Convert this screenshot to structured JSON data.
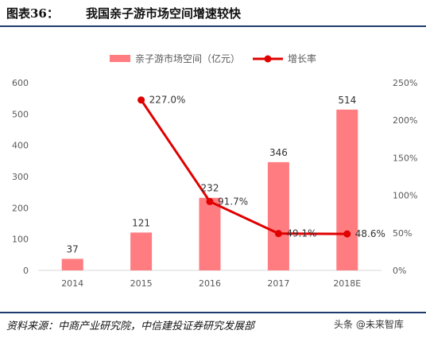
{
  "header": {
    "label": "图表36：",
    "title": "我国亲子游市场空间增速较快"
  },
  "footer": {
    "source": "资料来源：中商产业研究院，中信建投证券研究发展部",
    "watermark": "头条 @未来智库"
  },
  "colors": {
    "bar": "#ff7c80",
    "line": "#e00000",
    "rule": "#1f3a6e",
    "tick_text": "#595959"
  },
  "chart_data": {
    "type": "bar+line",
    "categories": [
      "2014",
      "2015",
      "2016",
      "2017",
      "2018E"
    ],
    "series": [
      {
        "name": "亲子游市场空间（亿元）",
        "kind": "bar",
        "axis": "left",
        "values": [
          37,
          121,
          232,
          346,
          514
        ],
        "labels": [
          "37",
          "121",
          "232",
          "346",
          "514"
        ]
      },
      {
        "name": "增长率",
        "kind": "line",
        "axis": "right",
        "values": [
          null,
          227.0,
          91.7,
          49.1,
          48.6
        ],
        "labels": [
          "",
          "227.0%",
          "91.7%",
          "49.1%",
          "48.6%"
        ]
      }
    ],
    "y_left": {
      "min": 0,
      "max": 600,
      "ticks": [
        "0",
        "100",
        "200",
        "300",
        "400",
        "500",
        "600"
      ]
    },
    "y_right": {
      "min": 0,
      "max": 250,
      "ticks": [
        "0%",
        "50%",
        "100%",
        "150%",
        "200%",
        "250%"
      ]
    },
    "grid": false,
    "legend_position": "top-center"
  }
}
